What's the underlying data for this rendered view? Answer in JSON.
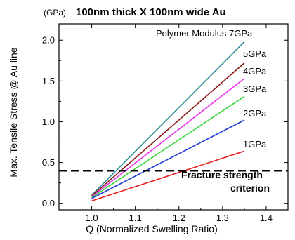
{
  "chart_data": {
    "type": "line",
    "title": "100nm thick X 100nm wide Au",
    "unit": "(GPa)",
    "xlabel": "Q (Normalized Swelling Ratio)",
    "ylabel": "Max. Tensile Stress @ Au line",
    "xlim": [
      0.925,
      1.45
    ],
    "ylim": [
      -0.08,
      2.2
    ],
    "xticks": [
      1.0,
      1.1,
      1.2,
      1.3,
      1.4
    ],
    "xtick_labels": [
      "1.0",
      "1.1",
      "1.2",
      "1.3",
      "1.4"
    ],
    "yticks": [
      0.0,
      0.5,
      1.0,
      1.5,
      2.0
    ],
    "ytick_labels": [
      "0.0",
      "0.5",
      "1.0",
      "1.5",
      "2.0"
    ],
    "series": [
      {
        "name": "Polymer Modulus 7GPa",
        "color": "#2a8c98",
        "x": [
          1.0,
          1.35
        ],
        "y": [
          0.1,
          1.98
        ]
      },
      {
        "name": "5GPa",
        "color": "#8b1a1a",
        "x": [
          1.0,
          1.35
        ],
        "y": [
          0.09,
          1.72
        ]
      },
      {
        "name": "4GPa",
        "color": "#e834e8",
        "x": [
          1.0,
          1.35
        ],
        "y": [
          0.08,
          1.53
        ]
      },
      {
        "name": "3GPa",
        "color": "#3cd63c",
        "x": [
          1.0,
          1.35
        ],
        "y": [
          0.07,
          1.31
        ]
      },
      {
        "name": "2GPa",
        "color": "#1e3ad6",
        "x": [
          1.0,
          1.35
        ],
        "y": [
          0.06,
          1.02
        ]
      },
      {
        "name": "1GPa",
        "color": "#e82020",
        "x": [
          1.0,
          1.35
        ],
        "y": [
          0.03,
          0.64
        ]
      }
    ],
    "threshold": {
      "y": 0.4,
      "label_line1": "Fracture strength",
      "label_line2": "criterion"
    },
    "grid": false
  }
}
